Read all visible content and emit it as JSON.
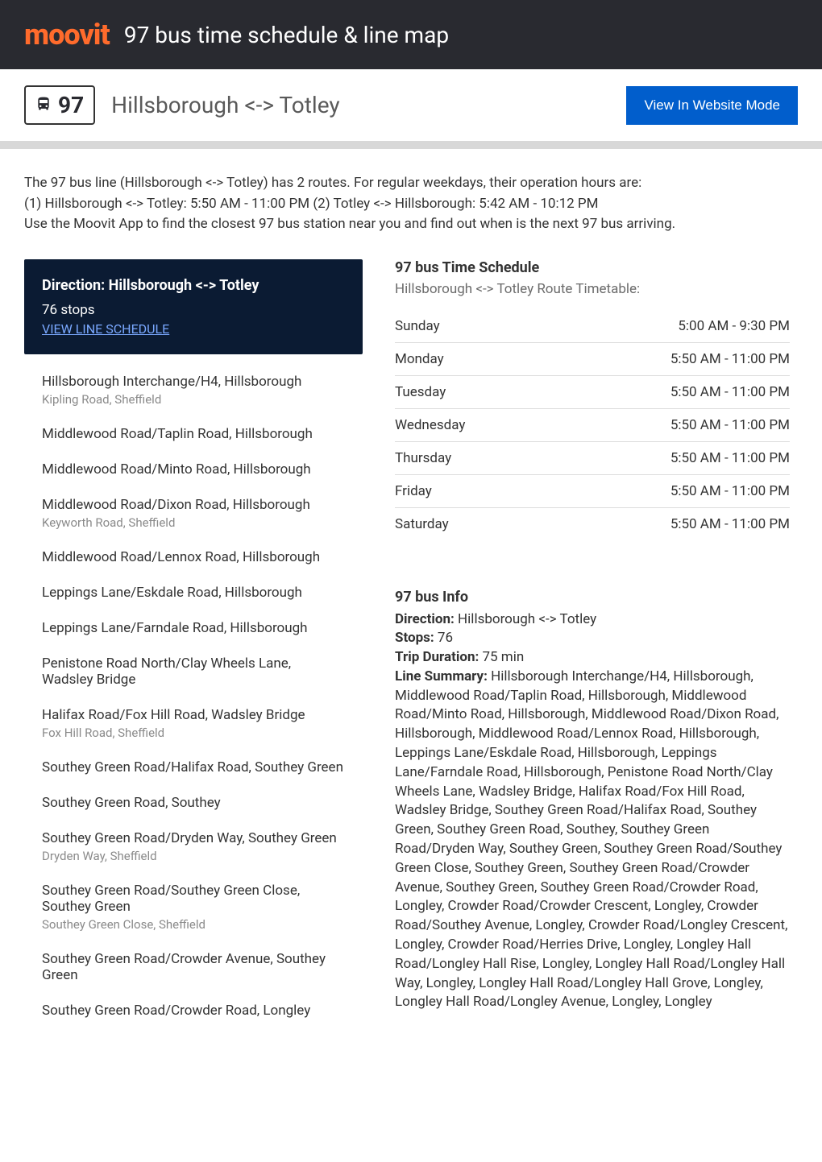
{
  "header": {
    "logo": "moovit",
    "title": "97 bus time schedule & line map"
  },
  "routeBar": {
    "number": "97",
    "title": "Hillsborough <-> Totley",
    "websiteBtn": "View In Website Mode"
  },
  "intro": "The 97 bus line (Hillsborough <-> Totley) has 2 routes. For regular weekdays, their operation hours are:\n(1) Hillsborough <-> Totley: 5:50 AM - 11:00 PM (2) Totley <-> Hillsborough: 5:42 AM - 10:12 PM\nUse the Moovit App to find the closest 97 bus station near you and find out when is the next 97 bus arriving.",
  "direction": {
    "title": "Direction: Hillsborough <-> Totley",
    "stopsCount": "76 stops",
    "viewLink": "VIEW LINE SCHEDULE"
  },
  "stops": [
    {
      "name": "Hillsborough Interchange/H4, Hillsborough",
      "sub": "Kipling Road, Sheffield"
    },
    {
      "name": "Middlewood Road/Taplin Road, Hillsborough",
      "sub": ""
    },
    {
      "name": "Middlewood Road/Minto Road, Hillsborough",
      "sub": ""
    },
    {
      "name": "Middlewood Road/Dixon Road, Hillsborough",
      "sub": "Keyworth Road, Sheffield"
    },
    {
      "name": "Middlewood Road/Lennox Road, Hillsborough",
      "sub": ""
    },
    {
      "name": "Leppings Lane/Eskdale Road, Hillsborough",
      "sub": ""
    },
    {
      "name": "Leppings Lane/Farndale Road, Hillsborough",
      "sub": ""
    },
    {
      "name": "Penistone Road North/Clay Wheels Lane, Wadsley Bridge",
      "sub": ""
    },
    {
      "name": "Halifax Road/Fox Hill Road, Wadsley Bridge",
      "sub": "Fox Hill Road, Sheffield"
    },
    {
      "name": "Southey Green Road/Halifax Road, Southey Green",
      "sub": ""
    },
    {
      "name": "Southey Green Road, Southey",
      "sub": ""
    },
    {
      "name": "Southey Green Road/Dryden Way, Southey Green",
      "sub": "Dryden Way, Sheffield"
    },
    {
      "name": "Southey Green Road/Southey Green Close, Southey Green",
      "sub": "Southey Green Close, Sheffield"
    },
    {
      "name": "Southey Green Road/Crowder Avenue, Southey Green",
      "sub": ""
    },
    {
      "name": "Southey Green Road/Crowder Road, Longley",
      "sub": ""
    }
  ],
  "schedule": {
    "title": "97 bus Time Schedule",
    "sub": "Hillsborough <-> Totley Route Timetable:",
    "rows": [
      {
        "day": "Sunday",
        "hours": "5:00 AM - 9:30 PM"
      },
      {
        "day": "Monday",
        "hours": "5:50 AM - 11:00 PM"
      },
      {
        "day": "Tuesday",
        "hours": "5:50 AM - 11:00 PM"
      },
      {
        "day": "Wednesday",
        "hours": "5:50 AM - 11:00 PM"
      },
      {
        "day": "Thursday",
        "hours": "5:50 AM - 11:00 PM"
      },
      {
        "day": "Friday",
        "hours": "5:50 AM - 11:00 PM"
      },
      {
        "day": "Saturday",
        "hours": "5:50 AM - 11:00 PM"
      }
    ]
  },
  "info": {
    "title": "97 bus Info",
    "directionLabel": "Direction:",
    "directionValue": "Hillsborough <-> Totley",
    "stopsLabel": "Stops:",
    "stopsValue": "76",
    "durationLabel": "Trip Duration:",
    "durationValue": "75 min",
    "summaryLabel": "Line Summary:",
    "summaryValue": "Hillsborough Interchange/H4, Hillsborough, Middlewood Road/Taplin Road, Hillsborough, Middlewood Road/Minto Road, Hillsborough, Middlewood Road/Dixon Road, Hillsborough, Middlewood Road/Lennox Road, Hillsborough, Leppings Lane/Eskdale Road, Hillsborough, Leppings Lane/Farndale Road, Hillsborough, Penistone Road North/Clay Wheels Lane, Wadsley Bridge, Halifax Road/Fox Hill Road, Wadsley Bridge, Southey Green Road/Halifax Road, Southey Green, Southey Green Road, Southey, Southey Green Road/Dryden Way, Southey Green, Southey Green Road/Southey Green Close, Southey Green, Southey Green Road/Crowder Avenue, Southey Green, Southey Green Road/Crowder Road, Longley, Crowder Road/Crowder Crescent, Longley, Crowder Road/Southey Avenue, Longley, Crowder Road/Longley Crescent, Longley, Crowder Road/Herries Drive, Longley, Longley Hall Road/Longley Hall Rise, Longley, Longley Hall Road/Longley Hall Way, Longley, Longley Hall Road/Longley Hall Grove, Longley, Longley Hall Road/Longley Avenue, Longley, Longley"
  },
  "colors": {
    "headerBg": "#292a30",
    "logoColor": "#ff6b2c",
    "buttonBg": "#015ecc",
    "directionBoxBg": "#0b1b33",
    "linkColor": "#7aa8ff",
    "dividerColor": "#d8d8d8",
    "subTextColor": "#8a8a8a"
  }
}
